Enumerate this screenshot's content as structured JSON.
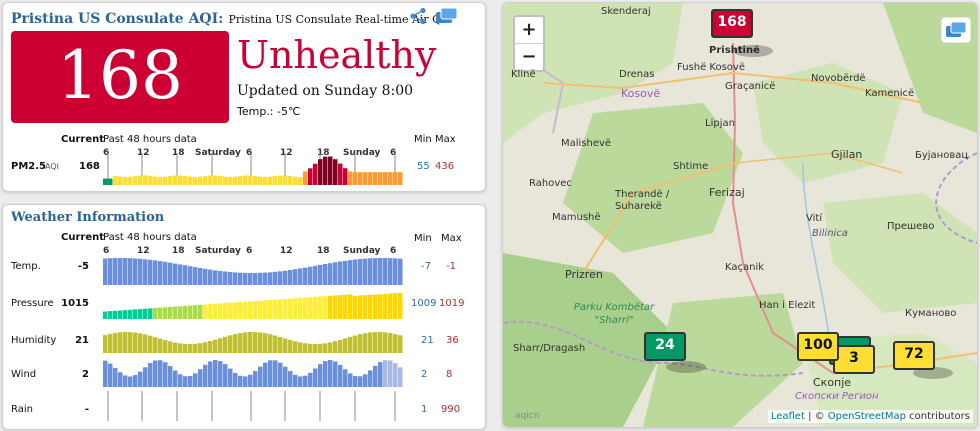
{
  "aqi": {
    "title": "Pristina US Consulate AQI:",
    "subtitle": "Pristina US Consulate Real-time Air Q",
    "value": "168",
    "level": "Unhealthy",
    "updated": "Updated on Sunday 8:00",
    "temp": "Temp.: -5℃",
    "pm_label": "PM2.5",
    "pm_unit": "AQI",
    "pm_current": "168",
    "pm_min": "55",
    "pm_max": "436"
  },
  "history": {
    "current_label": "Current",
    "past_label": "Past 48 hours data",
    "min_label": "Min",
    "max_label": "Max",
    "ticks": [
      "6",
      "12",
      "18",
      "Saturday",
      "6",
      "12",
      "18",
      "Sunday",
      "6"
    ]
  },
  "weather": {
    "title": "Weather Information",
    "rows": [
      {
        "label": "Temp.",
        "current": "-5",
        "min": "-7",
        "max": "-1"
      },
      {
        "label": "Pressure",
        "current": "1015",
        "min": "1009",
        "max": "1019"
      },
      {
        "label": "Humidity",
        "current": "21",
        "min": "21",
        "max": "36"
      },
      {
        "label": "Wind",
        "current": "2",
        "min": "2",
        "max": "8"
      },
      {
        "label": "Rain",
        "current": "-",
        "min": "1",
        "max": "990"
      }
    ]
  },
  "map": {
    "zoom_in": "+",
    "zoom_out": "−",
    "places": [
      "Skenderaj",
      "Prishtinë",
      "Klinë",
      "Drenas",
      "Fushë Kosovë",
      "Kosovë",
      "Graçanicë",
      "Novobërdë",
      "Kamenicë",
      "Lipjan",
      "Malishevë",
      "Shtime",
      "Gjilan",
      "Бујановац",
      "Rahovec",
      "Therandë / Suharekë",
      "Ferizaj",
      "Vití",
      "Bilinica",
      "Прешево",
      "Mamushë",
      "Prizren",
      "Kaçanik",
      "Parku Kombëtar \"Sharri\"",
      "Han i Elezit",
      "Куманово",
      "Sharr/Dragash",
      "Скопје",
      "Скопски Регион"
    ],
    "markers": [
      {
        "value": "168",
        "color": "#cc0033",
        "text_color": "#ffffff"
      },
      {
        "value": "24",
        "color": "#009966",
        "text_color": "#ffffff"
      },
      {
        "value": "100",
        "color": "#ffde33",
        "text_color": "#111111"
      },
      {
        "value": "3",
        "color": "#ffde33",
        "text_color": "#111111"
      },
      {
        "value": "72",
        "color": "#ffde33",
        "text_color": "#111111"
      }
    ],
    "watermark": "aqicn",
    "attribution_leaflet": "Leaflet",
    "attribution_sep": " | © ",
    "attribution_osm": "OpenStreetMap",
    "attribution_tail": " contributors"
  }
}
